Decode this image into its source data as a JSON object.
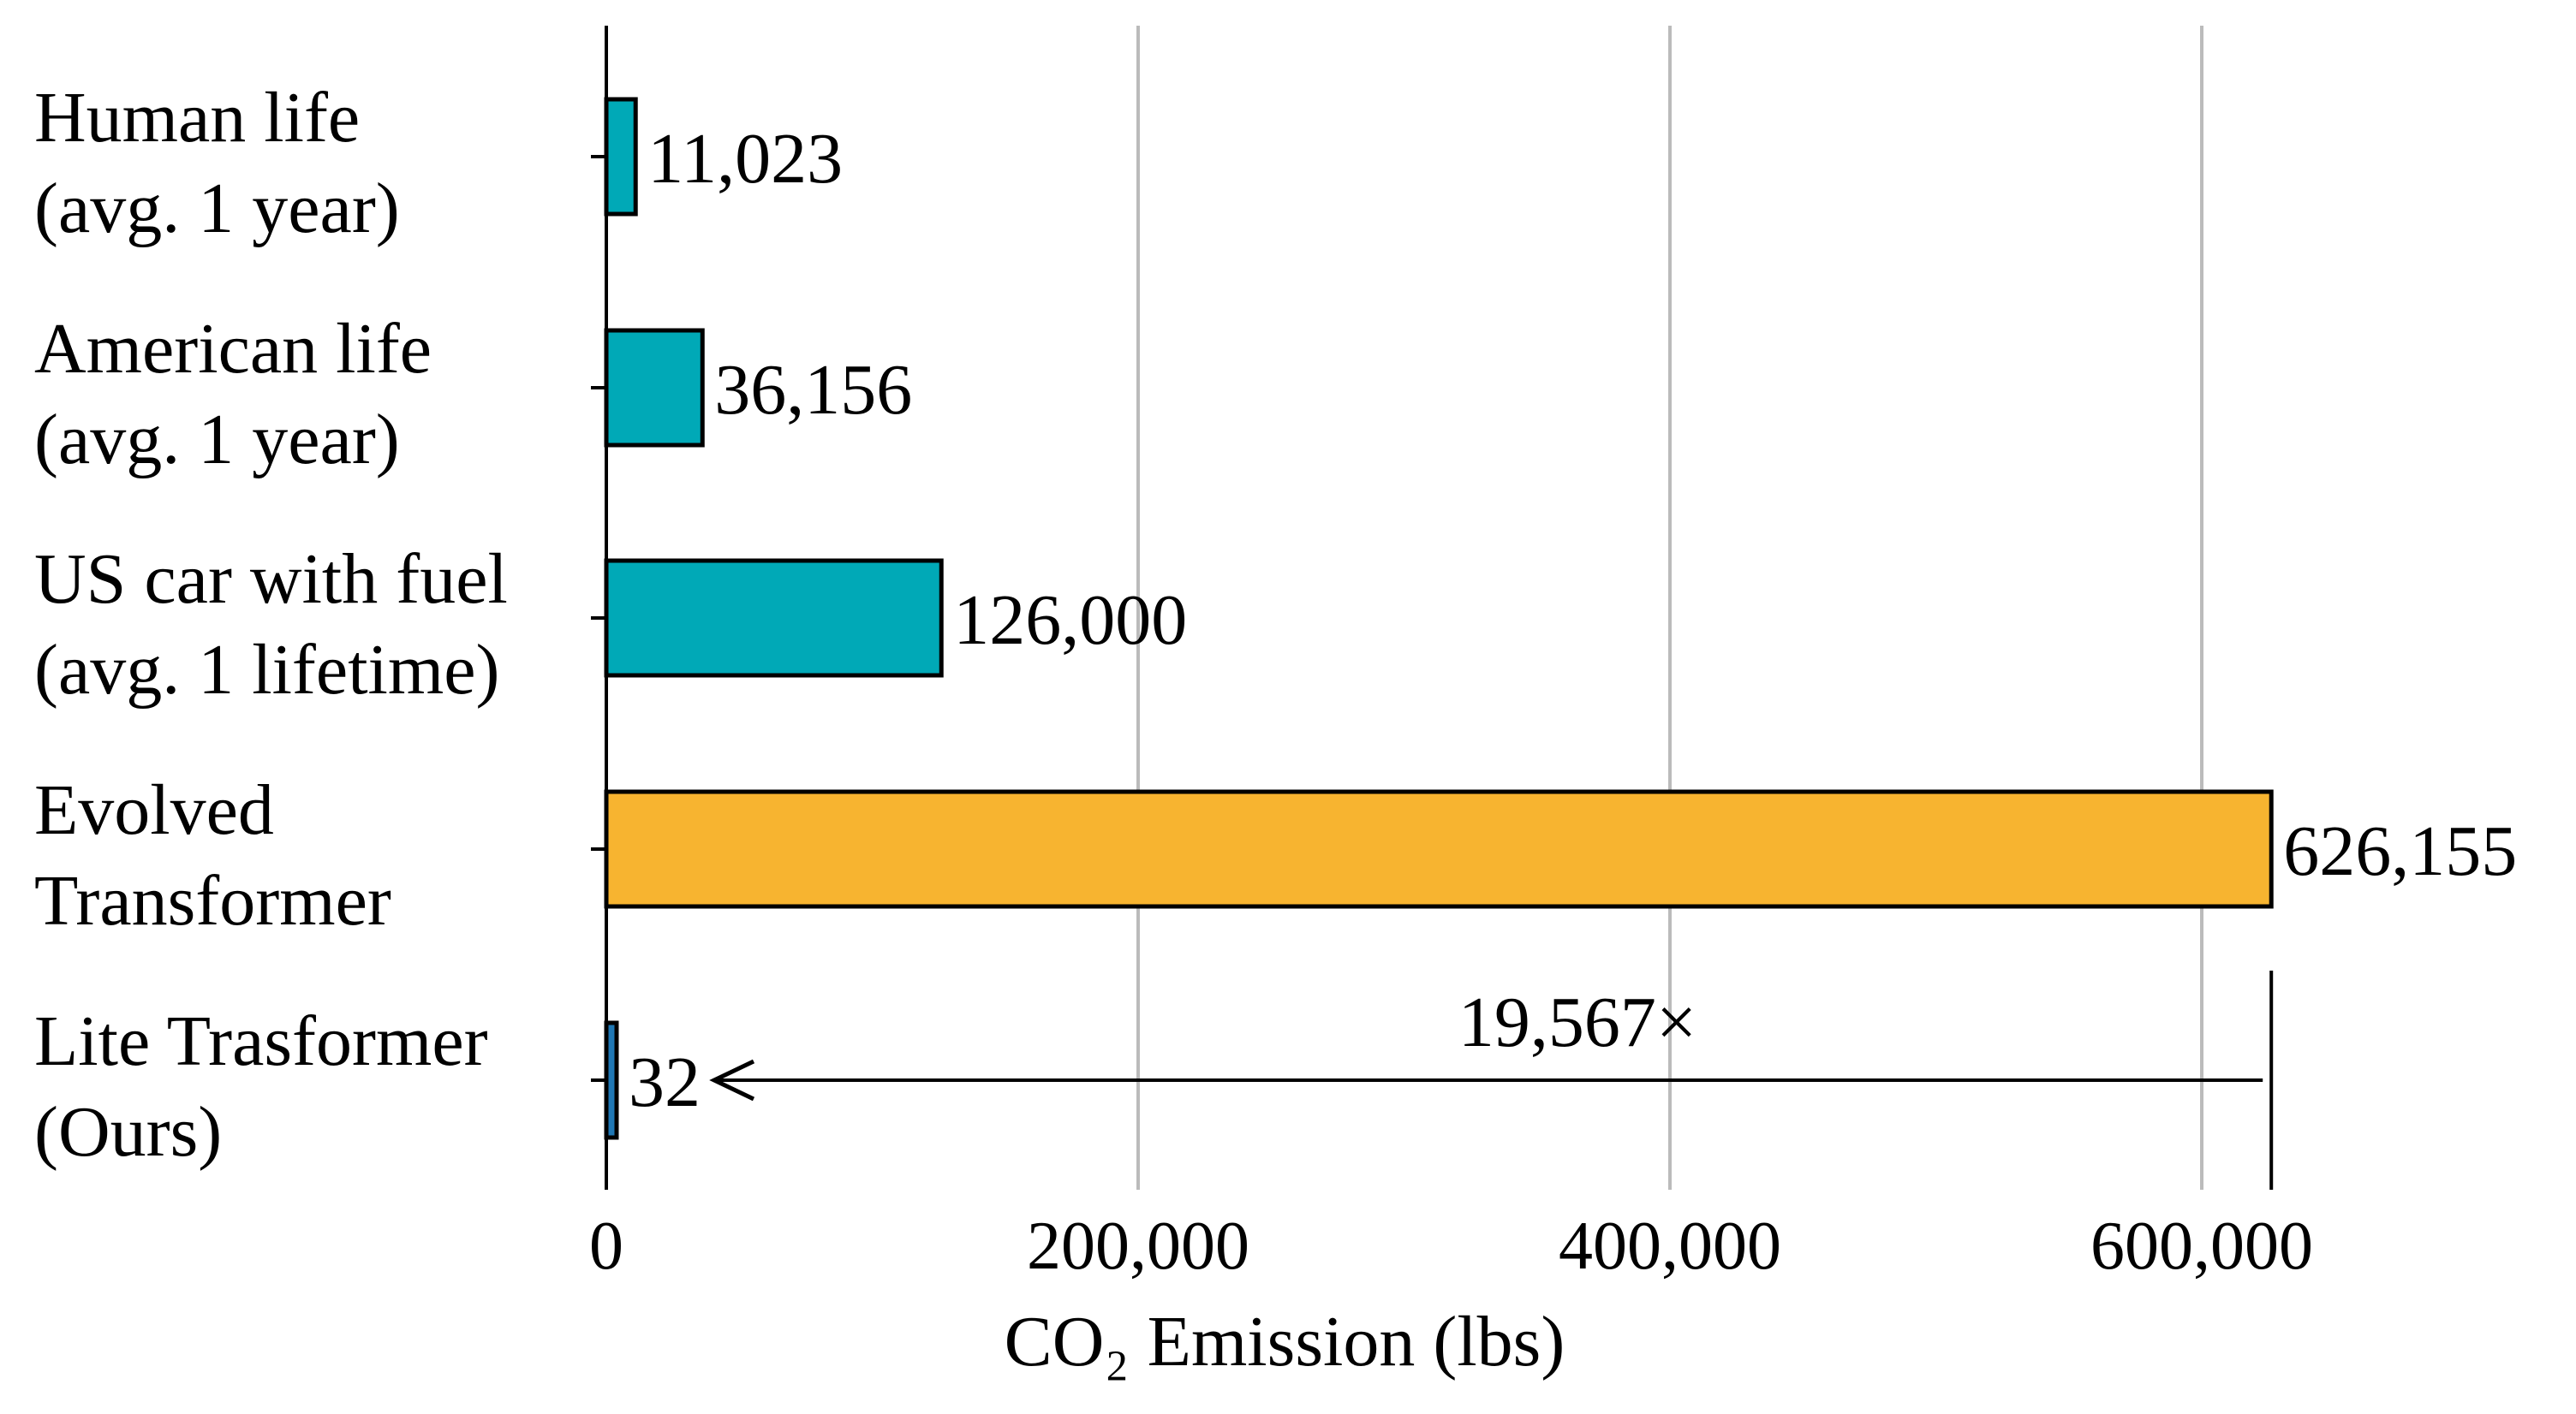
{
  "chart_data": {
    "type": "bar",
    "orientation": "horizontal",
    "title": "",
    "xlabel": "CO₂ Emission (lbs)",
    "ylabel": "",
    "xlim": [
      0,
      700000
    ],
    "xticks": [
      0,
      200000,
      400000,
      600000
    ],
    "xtick_labels": [
      "0",
      "200,000",
      "400,000",
      "600,000"
    ],
    "grid": "vertical",
    "categories": [
      {
        "lines": [
          "Human life",
          "(avg. 1 year)"
        ],
        "value": 11023,
        "value_label": "11,023",
        "color": "#00a9b7"
      },
      {
        "lines": [
          "American life",
          "(avg. 1 year)"
        ],
        "value": 36156,
        "value_label": "36,156",
        "color": "#00a9b7"
      },
      {
        "lines": [
          "US car with fuel",
          "(avg. 1 lifetime)"
        ],
        "value": 126000,
        "value_label": "126,000",
        "color": "#00a9b7"
      },
      {
        "lines": [
          "Evolved",
          "Transformer"
        ],
        "value": 626155,
        "value_label": "626,155",
        "color": "#f7b430"
      },
      {
        "lines": [
          "Lite Trasformer",
          "(Ours)"
        ],
        "value": 32,
        "value_label": "32",
        "color": "#1f77b4"
      }
    ],
    "annotation": {
      "text": "19,567×",
      "from_category_index": 3,
      "to_category_index": 4
    },
    "colors": {
      "grid": "#bbbbbb",
      "axis": "#000000",
      "bar_edge": "#000000"
    }
  }
}
